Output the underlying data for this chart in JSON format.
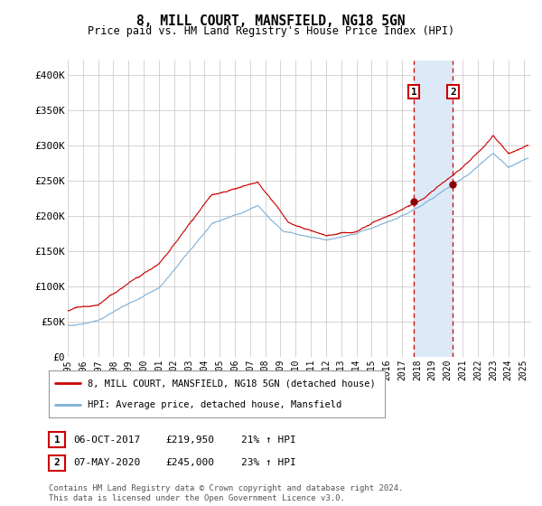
{
  "title": "8, MILL COURT, MANSFIELD, NG18 5GN",
  "subtitle": "Price paid vs. HM Land Registry's House Price Index (HPI)",
  "ylim": [
    0,
    420000
  ],
  "yticks": [
    0,
    50000,
    100000,
    150000,
    200000,
    250000,
    300000,
    350000,
    400000
  ],
  "ytick_labels": [
    "£0",
    "£50K",
    "£100K",
    "£150K",
    "£200K",
    "£250K",
    "£300K",
    "£350K",
    "£400K"
  ],
  "line1_color": "#cc0000",
  "line2_color": "#7fafd4",
  "bg_color": "#ffffff",
  "plot_bg_color": "#ffffff",
  "grid_color": "#cccccc",
  "marker1_date": 2017.79,
  "marker2_date": 2020.35,
  "marker1_price": 219950,
  "marker2_price": 245000,
  "legend_label1": "8, MILL COURT, MANSFIELD, NG18 5GN (detached house)",
  "legend_label2": "HPI: Average price, detached house, Mansfield",
  "footer": "Contains HM Land Registry data © Crown copyright and database right 2024.\nThis data is licensed under the Open Government Licence v3.0.",
  "xstart": 1995.0,
  "xend": 2025.5,
  "n_points": 3650
}
